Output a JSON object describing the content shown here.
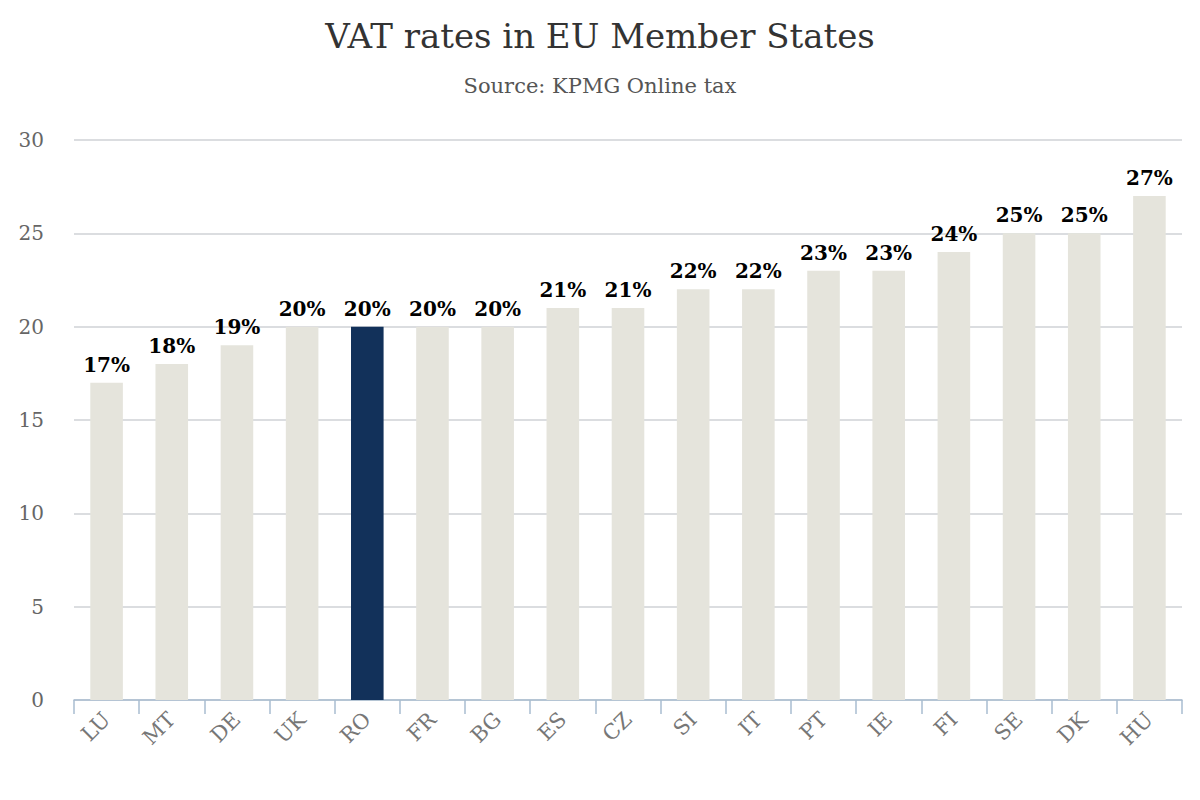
{
  "chart_data": {
    "type": "bar",
    "title": "VAT rates in EU Member States",
    "subtitle": "Source: KPMG Online tax",
    "categories": [
      "LU",
      "MT",
      "DE",
      "UK",
      "RO",
      "FR",
      "BG",
      "ES",
      "CZ",
      "SI",
      "IT",
      "PT",
      "IE",
      "FI",
      "SE",
      "DK",
      "HU"
    ],
    "values": [
      17,
      18,
      19,
      20,
      20,
      20,
      20,
      21,
      21,
      22,
      22,
      23,
      23,
      24,
      25,
      25,
      27
    ],
    "value_labels": [
      "17%",
      "18%",
      "19%",
      "20%",
      "20%",
      "20%",
      "20%",
      "21%",
      "21%",
      "22%",
      "22%",
      "23%",
      "23%",
      "24%",
      "25%",
      "25%",
      "27%"
    ],
    "colors": [
      "#e5e4dc",
      "#e5e4dc",
      "#e5e4dc",
      "#e5e4dc",
      "#12315a",
      "#e5e4dc",
      "#e5e4dc",
      "#e5e4dc",
      "#e5e4dc",
      "#e5e4dc",
      "#e5e4dc",
      "#e5e4dc",
      "#e5e4dc",
      "#e5e4dc",
      "#e5e4dc",
      "#e5e4dc",
      "#e5e4dc"
    ],
    "ylim": [
      0,
      30
    ],
    "yticks": [
      0,
      5,
      10,
      15,
      20,
      25,
      30
    ],
    "grid": true,
    "data_labels": true
  }
}
